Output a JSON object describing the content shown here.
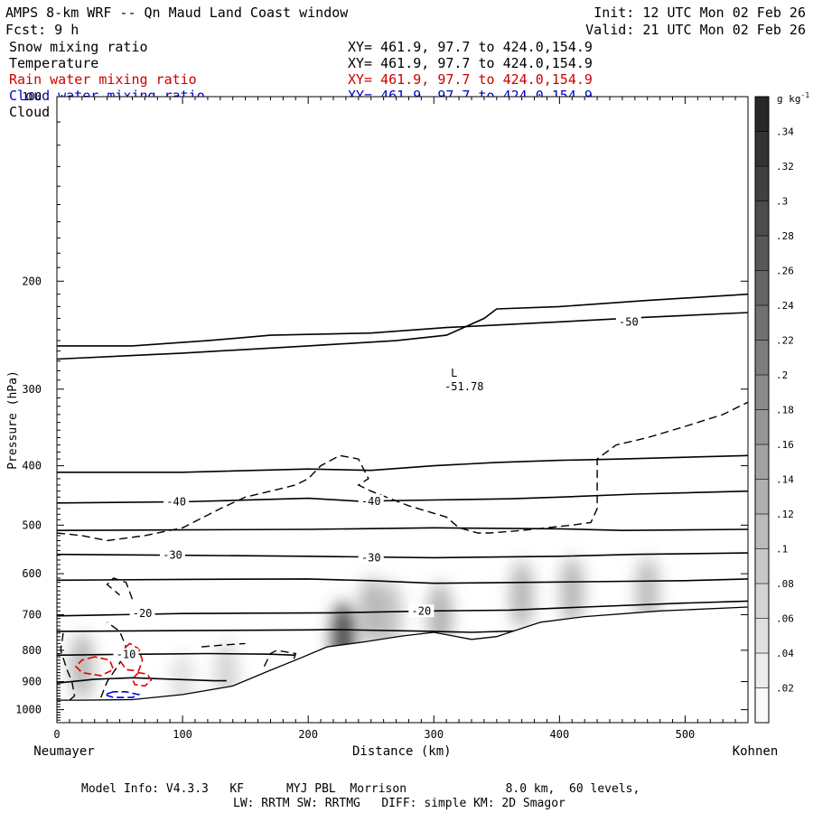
{
  "header": {
    "title": "AMPS 8-km WRF -- Qn Maud Land Coast window",
    "forecast": "Fcst:    9 h",
    "init": "Init: 12 UTC Mon 02 Feb 26",
    "valid": "Valid: 21 UTC Mon 02 Feb 26"
  },
  "legend": [
    {
      "name": "Snow mixing ratio",
      "xy": "XY= 461.9, 97.7 to 424.0,154.9",
      "color": "#000000"
    },
    {
      "name": "Temperature",
      "xy": "XY= 461.9, 97.7 to 424.0,154.9",
      "color": "#000000"
    },
    {
      "name": "Rain water mixing ratio",
      "xy": "XY= 461.9, 97.7 to 424.0,154.9",
      "color": "#cc0000"
    },
    {
      "name": "Cloud water mixing ratio",
      "xy": "XY= 461.9, 97.7 to 424.0,154.9",
      "color": "#0000cc"
    },
    {
      "name": "Cloud ice mixing ratio",
      "xy": "XY= 461.9, 97.7 to 424.0,154.9",
      "color": "#000000"
    }
  ],
  "footer": {
    "line1": "Model Info: V4.3.3   KF      MYJ PBL  Morrison              8.0 km,  60 levels,",
    "line2": "LW: RRTM SW: RRTMG   DIFF: simple KM: 2D Smagor"
  },
  "chart_data": {
    "type": "contour",
    "title": "AMPS 8-km WRF -- Qn Maud Land Coast window",
    "xlabel": "Distance (km)",
    "ylabel": "Pressure (hPa)",
    "xlim": [
      0,
      550
    ],
    "ylim": [
      1050,
      100
    ],
    "x_ticks": [
      0,
      100,
      200,
      300,
      400,
      500
    ],
    "y_ticks": [
      100,
      200,
      300,
      400,
      500,
      600,
      700,
      800,
      900,
      1000
    ],
    "start_label": "Neumayer",
    "end_label": "Kohnen",
    "colorbar": {
      "unit": "g kg",
      "unit_exp": "-1",
      "ticks": [
        ".02",
        ".04",
        ".06",
        ".08",
        ".1",
        ".12",
        ".14",
        ".16",
        ".18",
        ".2",
        ".22",
        ".24",
        ".26",
        ".28",
        ".3",
        ".32",
        ".34"
      ],
      "range": [
        0,
        0.36
      ]
    },
    "terrain": [
      [
        0,
        965
      ],
      [
        20,
        965
      ],
      [
        60,
        963
      ],
      [
        100,
        945
      ],
      [
        140,
        915
      ],
      [
        170,
        862
      ],
      [
        190,
        830
      ],
      [
        215,
        790
      ],
      [
        245,
        775
      ],
      [
        275,
        758
      ],
      [
        300,
        748
      ],
      [
        330,
        768
      ],
      [
        350,
        760
      ],
      [
        385,
        720
      ],
      [
        420,
        705
      ],
      [
        480,
        690
      ],
      [
        550,
        680
      ]
    ],
    "isotherms": [
      {
        "value": -50,
        "label": "-50",
        "points": [
          [
            0,
            255
          ],
          [
            60,
            255
          ],
          [
            120,
            250
          ],
          [
            170,
            245
          ],
          [
            250,
            243
          ],
          [
            310,
            238
          ],
          [
            400,
            233
          ],
          [
            470,
            229
          ],
          [
            550,
            225
          ]
        ],
        "label_positions": [
          [
            455,
            233
          ]
        ]
      },
      {
        "value": -50,
        "label": "-50",
        "points": [
          [
            0,
            268
          ],
          [
            100,
            262
          ],
          [
            200,
            255
          ],
          [
            270,
            250
          ],
          [
            310,
            245
          ],
          [
            340,
            230
          ],
          [
            350,
            222
          ],
          [
            400,
            220
          ],
          [
            470,
            215
          ],
          [
            550,
            210
          ]
        ],
        "label_positions": []
      },
      {
        "value": -40,
        "label": "-40",
        "points": [
          [
            0,
            410
          ],
          [
            100,
            410
          ],
          [
            200,
            405
          ],
          [
            250,
            407
          ],
          [
            300,
            400
          ],
          [
            350,
            395
          ],
          [
            400,
            392
          ],
          [
            450,
            390
          ],
          [
            550,
            385
          ]
        ],
        "label_positions": []
      },
      {
        "value": -40,
        "label": "-40",
        "points": [
          [
            0,
            460
          ],
          [
            100,
            458
          ],
          [
            200,
            452
          ],
          [
            240,
            457
          ],
          [
            300,
            455
          ],
          [
            360,
            453
          ],
          [
            400,
            450
          ],
          [
            460,
            445
          ],
          [
            550,
            440
          ]
        ],
        "label_positions": [
          [
            95,
            458
          ],
          [
            250,
            457
          ]
        ]
      },
      {
        "value": -35,
        "label": "",
        "points": [
          [
            0,
            510
          ],
          [
            100,
            509
          ],
          [
            200,
            508
          ],
          [
            300,
            505
          ],
          [
            400,
            507
          ],
          [
            450,
            510
          ],
          [
            550,
            508
          ]
        ],
        "label_positions": []
      },
      {
        "value": -30,
        "label": "-30",
        "points": [
          [
            0,
            558
          ],
          [
            100,
            560
          ],
          [
            200,
            562
          ],
          [
            300,
            565
          ],
          [
            400,
            562
          ],
          [
            460,
            558
          ],
          [
            550,
            555
          ]
        ],
        "label_positions": [
          [
            92,
            560
          ],
          [
            250,
            565
          ]
        ]
      },
      {
        "value": -25,
        "label": "",
        "points": [
          [
            0,
            615
          ],
          [
            100,
            613
          ],
          [
            200,
            612
          ],
          [
            250,
            616
          ],
          [
            300,
            622
          ],
          [
            400,
            619
          ],
          [
            500,
            616
          ],
          [
            550,
            612
          ]
        ],
        "label_positions": []
      },
      {
        "value": -20,
        "label": "-20",
        "points": [
          [
            0,
            703
          ],
          [
            50,
            700
          ],
          [
            100,
            697
          ],
          [
            150,
            696
          ],
          [
            220,
            695
          ],
          [
            300,
            690
          ],
          [
            360,
            688
          ],
          [
            420,
            680
          ],
          [
            500,
            670
          ],
          [
            550,
            665
          ]
        ],
        "label_positions": [
          [
            68,
            697
          ],
          [
            290,
            690
          ]
        ]
      },
      {
        "value": -15,
        "label": "",
        "points": [
          [
            0,
            745
          ],
          [
            100,
            743
          ],
          [
            200,
            741
          ],
          [
            220,
            740
          ],
          [
            300,
            745
          ],
          [
            330,
            748
          ],
          [
            400,
            740
          ],
          [
            500,
            730
          ],
          [
            550,
            727
          ]
        ],
        "label_positions": []
      },
      {
        "value": -10,
        "label": "-10",
        "points": [
          [
            0,
            815
          ],
          [
            40,
            813
          ],
          [
            70,
            812
          ],
          [
            120,
            810
          ],
          [
            170,
            812
          ],
          [
            190,
            815
          ]
        ],
        "label_positions": [
          [
            55,
            813
          ]
        ]
      },
      {
        "value": -5,
        "label": "",
        "points": [
          [
            0,
            905
          ],
          [
            30,
            892
          ],
          [
            60,
            887
          ],
          [
            100,
            893
          ],
          [
            125,
            897
          ],
          [
            135,
            897
          ]
        ],
        "label_positions": []
      }
    ],
    "cold_low": {
      "label": "L",
      "value": "-51.78",
      "at": [
        320,
        295
      ]
    },
    "snow_contour": [
      [
        0,
        515
      ],
      [
        20,
        520
      ],
      [
        40,
        530
      ],
      [
        70,
        520
      ],
      [
        100,
        505
      ],
      [
        130,
        470
      ],
      [
        150,
        450
      ],
      [
        170,
        440
      ],
      [
        190,
        430
      ],
      [
        200,
        420
      ],
      [
        210,
        400
      ],
      [
        225,
        385
      ],
      [
        240,
        390
      ],
      [
        248,
        420
      ],
      [
        240,
        430
      ],
      [
        250,
        440
      ],
      [
        280,
        465
      ],
      [
        310,
        485
      ],
      [
        320,
        505
      ],
      [
        335,
        515
      ],
      [
        345,
        515
      ],
      [
        370,
        510
      ],
      [
        410,
        500
      ],
      [
        425,
        495
      ],
      [
        430,
        470
      ],
      [
        430,
        390
      ],
      [
        445,
        370
      ],
      [
        470,
        360
      ],
      [
        500,
        345
      ],
      [
        530,
        330
      ],
      [
        550,
        315
      ]
    ],
    "snow_blobs": [
      [
        [
          5,
          750
        ],
        [
          3,
          800
        ],
        [
          8,
          860
        ],
        [
          12,
          900
        ],
        [
          14,
          950
        ],
        [
          10,
          965
        ]
      ],
      [
        [
          35,
          955
        ],
        [
          40,
          900
        ],
        [
          50,
          840
        ],
        [
          55,
          790
        ],
        [
          50,
          745
        ],
        [
          40,
          720
        ]
      ],
      [
        [
          115,
          790
        ],
        [
          130,
          785
        ],
        [
          150,
          780
        ]
      ],
      [
        [
          165,
          850
        ],
        [
          170,
          810
        ],
        [
          175,
          800
        ],
        [
          190,
          810
        ],
        [
          188,
          835
        ]
      ],
      [
        [
          60,
          660
        ],
        [
          55,
          620
        ],
        [
          45,
          610
        ],
        [
          40,
          625
        ],
        [
          50,
          650
        ]
      ]
    ],
    "rain_contours": [
      [
        [
          30,
          820
        ],
        [
          20,
          830
        ],
        [
          15,
          850
        ],
        [
          20,
          870
        ],
        [
          35,
          880
        ],
        [
          45,
          860
        ],
        [
          42,
          830
        ]
      ],
      [
        [
          58,
          780
        ],
        [
          52,
          800
        ],
        [
          50,
          830
        ],
        [
          55,
          860
        ],
        [
          65,
          865
        ],
        [
          68,
          830
        ],
        [
          65,
          795
        ]
      ],
      [
        [
          65,
          870
        ],
        [
          60,
          890
        ],
        [
          62,
          910
        ],
        [
          70,
          915
        ],
        [
          75,
          895
        ],
        [
          72,
          875
        ]
      ]
    ],
    "cloud_water_contours": [
      [
        [
          45,
          935
        ],
        [
          38,
          945
        ],
        [
          45,
          955
        ],
        [
          60,
          955
        ],
        [
          65,
          945
        ],
        [
          55,
          935
        ]
      ]
    ],
    "cloud_ice_maxima": [
      {
        "x": 20,
        "p": 850,
        "value": 0.12
      },
      {
        "x": 100,
        "p": 915,
        "value": 0.05
      },
      {
        "x": 135,
        "p": 880,
        "value": 0.07
      },
      {
        "x": 228,
        "p": 760,
        "value": 0.3
      },
      {
        "x": 250,
        "p": 690,
        "value": 0.12
      },
      {
        "x": 265,
        "p": 700,
        "value": 0.1
      },
      {
        "x": 305,
        "p": 705,
        "value": 0.13
      },
      {
        "x": 370,
        "p": 650,
        "value": 0.12
      },
      {
        "x": 410,
        "p": 640,
        "value": 0.12
      },
      {
        "x": 470,
        "p": 640,
        "value": 0.11
      }
    ]
  }
}
